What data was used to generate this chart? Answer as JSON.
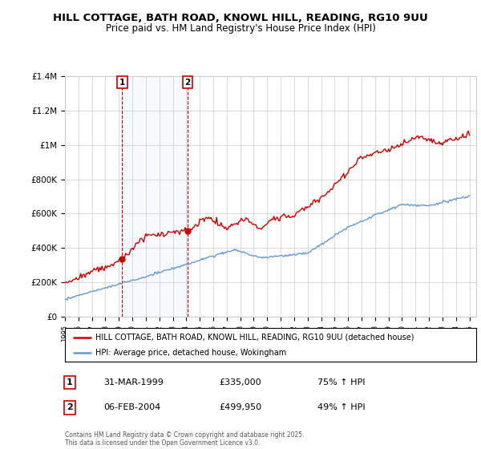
{
  "title_line1": "HILL COTTAGE, BATH ROAD, KNOWL HILL, READING, RG10 9UU",
  "title_line2": "Price paid vs. HM Land Registry's House Price Index (HPI)",
  "red_label": "HILL COTTAGE, BATH ROAD, KNOWL HILL, READING, RG10 9UU (detached house)",
  "blue_label": "HPI: Average price, detached house, Wokingham",
  "annotation1_date": "31-MAR-1999",
  "annotation1_price": "£335,000",
  "annotation1_hpi": "75% ↑ HPI",
  "annotation2_date": "06-FEB-2004",
  "annotation2_price": "£499,950",
  "annotation2_hpi": "49% ↑ HPI",
  "footnote": "Contains HM Land Registry data © Crown copyright and database right 2025.\nThis data is licensed under the Open Government Licence v3.0.",
  "xmin": 1995,
  "xmax": 2025.5,
  "ymin": 0,
  "ymax": 1400000,
  "yticks": [
    0,
    200000,
    400000,
    600000,
    800000,
    1000000,
    1200000,
    1400000
  ],
  "ytick_labels": [
    "£0",
    "£200K",
    "£400K",
    "£600K",
    "£800K",
    "£1M",
    "£1.2M",
    "£1.4M"
  ],
  "purchase1_x": 1999.25,
  "purchase1_y": 335000,
  "purchase2_x": 2004.09,
  "purchase2_y": 499950,
  "red_color": "#cc0000",
  "blue_color": "#6699cc",
  "vline1_x": 1999.25,
  "vline2_x": 2004.09,
  "background_color": "#ffffff",
  "plot_bg_color": "#ffffff",
  "span_color": "#ddeeff",
  "grid_color": "#cccccc"
}
